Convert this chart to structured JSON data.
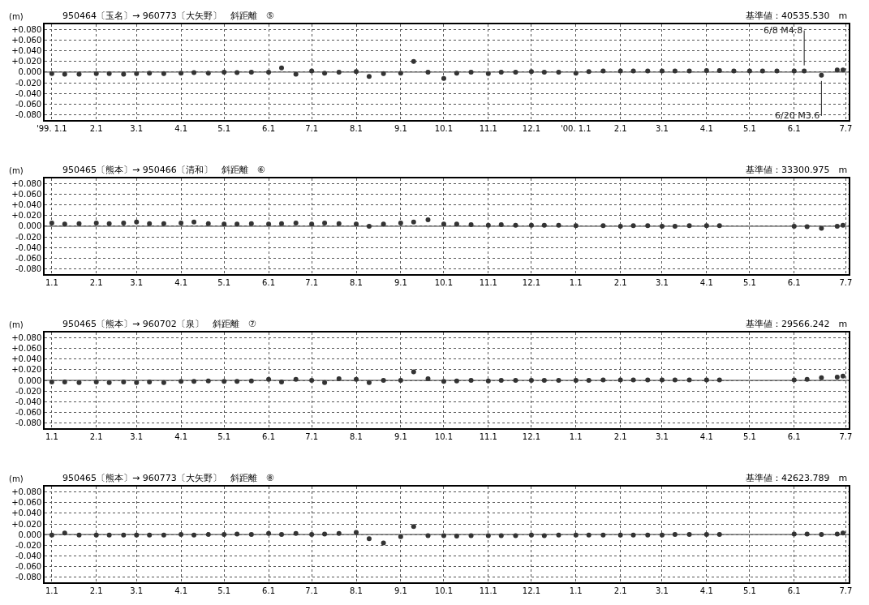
{
  "chart_data": [
    {
      "type": "scatter",
      "title": "950464〔玉名〕→ 960773〔大矢野〕　斜距離　⑤",
      "subtitle": "基準値：40535.530　m",
      "ylabel": "(m)",
      "color": "#333333",
      "marker": "circle",
      "grid": true,
      "x": [
        "1999-01-01",
        "1999-01-10",
        "1999-01-20",
        "1999-02-01",
        "1999-02-10",
        "1999-02-20",
        "1999-03-01",
        "1999-03-10",
        "1999-03-20",
        "1999-04-01",
        "1999-04-10",
        "1999-04-20",
        "1999-05-01",
        "1999-05-10",
        "1999-05-20",
        "1999-06-01",
        "1999-06-10",
        "1999-06-20",
        "1999-07-01",
        "1999-07-10",
        "1999-07-20",
        "1999-08-01",
        "1999-08-10",
        "1999-08-20",
        "1999-09-01",
        "1999-09-10",
        "1999-09-20",
        "1999-10-01",
        "1999-10-10",
        "1999-10-20",
        "1999-11-01",
        "1999-11-10",
        "1999-11-20",
        "1999-12-01",
        "1999-12-10",
        "1999-12-20",
        "2000-01-01",
        "2000-01-10",
        "2000-01-20",
        "2000-02-01",
        "2000-02-10",
        "2000-02-20",
        "2000-03-01",
        "2000-03-10",
        "2000-03-20",
        "2000-04-01",
        "2000-04-10",
        "2000-04-20",
        "2000-05-01",
        "2000-05-10",
        "2000-05-20",
        "2000-06-01",
        "2000-06-08",
        "2000-06-20",
        "2000-07-01",
        "2000-07-05"
      ],
      "values": [
        -0.003,
        -0.004,
        -0.004,
        -0.003,
        -0.003,
        -0.004,
        -0.003,
        -0.002,
        -0.003,
        -0.002,
        -0.001,
        -0.002,
        0.0,
        -0.001,
        0.0,
        0.0,
        0.008,
        -0.004,
        0.002,
        -0.002,
        0.0,
        0.001,
        -0.008,
        -0.003,
        -0.002,
        0.02,
        0.0,
        -0.012,
        -0.002,
        0.0,
        -0.003,
        0.0,
        0.0,
        0.001,
        0.0,
        0.0,
        -0.002,
        0.001,
        0.002,
        0.002,
        0.002,
        0.002,
        0.002,
        0.002,
        0.002,
        0.003,
        0.003,
        0.002,
        0.002,
        0.002,
        0.002,
        0.002,
        0.002,
        -0.006,
        0.004,
        0.004
      ],
      "xlim": [
        "1998-12-27",
        "2000-07-09"
      ],
      "xticks": [
        {
          "value": "1999-01-01",
          "label": "'99. 1.1"
        },
        {
          "value": "1999-02-01",
          "label": "2.1"
        },
        {
          "value": "1999-03-01",
          "label": "3.1"
        },
        {
          "value": "1999-04-01",
          "label": "4.1"
        },
        {
          "value": "1999-05-01",
          "label": "5.1"
        },
        {
          "value": "1999-06-01",
          "label": "6.1"
        },
        {
          "value": "1999-07-01",
          "label": "7.1"
        },
        {
          "value": "1999-08-01",
          "label": "8.1"
        },
        {
          "value": "1999-09-01",
          "label": "9.1"
        },
        {
          "value": "1999-10-01",
          "label": "10.1"
        },
        {
          "value": "1999-11-01",
          "label": "11.1"
        },
        {
          "value": "1999-12-01",
          "label": "12.1"
        },
        {
          "value": "2000-01-01",
          "label": "'00. 1.1"
        },
        {
          "value": "2000-02-01",
          "label": "2.1"
        },
        {
          "value": "2000-03-01",
          "label": "3.1"
        },
        {
          "value": "2000-04-01",
          "label": "4.1"
        },
        {
          "value": "2000-05-01",
          "label": "5.1"
        },
        {
          "value": "2000-06-01",
          "label": "6.1"
        },
        {
          "value": "2000-07-07",
          "label": "7.7"
        }
      ],
      "ylim": [
        -0.09,
        0.09
      ],
      "yticks": [
        {
          "value": 0.08,
          "label": "+0.080"
        },
        {
          "value": 0.06,
          "label": "+0.060"
        },
        {
          "value": 0.04,
          "label": "+0.040"
        },
        {
          "value": 0.02,
          "label": "+0.020"
        },
        {
          "value": 0,
          "label": "0.000"
        },
        {
          "value": -0.02,
          "label": "-0.020"
        },
        {
          "value": -0.04,
          "label": "-0.040"
        },
        {
          "value": -0.06,
          "label": "-0.060"
        },
        {
          "value": -0.08,
          "label": "-0.080"
        }
      ],
      "ref_lines": [
        {
          "axis": "y",
          "value": 0
        }
      ],
      "annotations": [
        {
          "text": "6/8 M4.8",
          "x": "2000-06-08",
          "y": 0.002
        },
        {
          "text": "6/20 M3.6",
          "x": "2000-06-20",
          "y": -0.006
        }
      ]
    },
    {
      "type": "scatter",
      "title": "950465〔熊本〕→ 950466〔清和〕　斜距離　⑥",
      "subtitle": "基準値：33300.975　m",
      "ylabel": "(m)",
      "color": "#333333",
      "marker": "circle",
      "grid": true,
      "x": [
        "1999-01-01",
        "1999-01-10",
        "1999-01-20",
        "1999-02-01",
        "1999-02-10",
        "1999-02-20",
        "1999-03-01",
        "1999-03-10",
        "1999-03-20",
        "1999-04-01",
        "1999-04-10",
        "1999-04-20",
        "1999-05-01",
        "1999-05-10",
        "1999-05-20",
        "1999-06-01",
        "1999-06-10",
        "1999-06-20",
        "1999-07-01",
        "1999-07-10",
        "1999-07-20",
        "1999-08-01",
        "1999-08-10",
        "1999-08-20",
        "1999-09-01",
        "1999-09-10",
        "1999-09-20",
        "1999-10-01",
        "1999-10-10",
        "1999-10-20",
        "1999-11-01",
        "1999-11-10",
        "1999-11-20",
        "1999-12-01",
        "1999-12-10",
        "1999-12-20",
        "2000-01-01",
        "2000-01-10",
        "2000-01-20",
        "2000-02-01",
        "2000-02-10",
        "2000-02-20",
        "2000-03-01",
        "2000-03-10",
        "2000-03-20",
        "2000-04-01",
        "2000-04-10",
        "2000-04-20",
        "2000-05-01",
        "2000-05-10",
        "2000-05-20",
        "2000-06-01",
        "2000-06-10",
        "2000-06-20",
        "2000-07-01",
        "2000-07-05"
      ],
      "values": [
        0.006,
        0.004,
        0.005,
        0.006,
        0.005,
        0.006,
        0.008,
        0.005,
        0.005,
        0.006,
        0.008,
        0.005,
        0.004,
        0.004,
        0.005,
        0.004,
        0.005,
        0.006,
        0.004,
        0.006,
        0.005,
        0.004,
        0.0,
        0.004,
        0.006,
        0.008,
        0.012,
        0.004,
        0.004,
        0.003,
        0.002,
        0.003,
        0.002,
        0.002,
        0.002,
        0.002,
        0.001,
        null,
        0.001,
        0.0,
        0.001,
        0.001,
        0.0,
        0.0,
        0.001,
        0.001,
        0.001,
        null,
        null,
        null,
        null,
        0.0,
        -0.001,
        -0.004,
        0.0,
        0.002
      ],
      "xlim": [
        "1998-12-27",
        "2000-07-09"
      ],
      "xticks": [
        {
          "value": "1999-01-01",
          "label": "1.1"
        },
        {
          "value": "1999-02-01",
          "label": "2.1"
        },
        {
          "value": "1999-03-01",
          "label": "3.1"
        },
        {
          "value": "1999-04-01",
          "label": "4.1"
        },
        {
          "value": "1999-05-01",
          "label": "5.1"
        },
        {
          "value": "1999-06-01",
          "label": "6.1"
        },
        {
          "value": "1999-07-01",
          "label": "7.1"
        },
        {
          "value": "1999-08-01",
          "label": "8.1"
        },
        {
          "value": "1999-09-01",
          "label": "9.1"
        },
        {
          "value": "1999-10-01",
          "label": "10.1"
        },
        {
          "value": "1999-11-01",
          "label": "11.1"
        },
        {
          "value": "1999-12-01",
          "label": "12.1"
        },
        {
          "value": "2000-01-01",
          "label": "1.1"
        },
        {
          "value": "2000-02-01",
          "label": "2.1"
        },
        {
          "value": "2000-03-01",
          "label": "3.1"
        },
        {
          "value": "2000-04-01",
          "label": "4.1"
        },
        {
          "value": "2000-05-01",
          "label": "5.1"
        },
        {
          "value": "2000-06-01",
          "label": "6.1"
        },
        {
          "value": "2000-07-07",
          "label": "7.7"
        }
      ],
      "ylim": [
        -0.09,
        0.09
      ],
      "yticks": [
        {
          "value": 0.08,
          "label": "+0.080"
        },
        {
          "value": 0.06,
          "label": "+0.060"
        },
        {
          "value": 0.04,
          "label": "+0.040"
        },
        {
          "value": 0.02,
          "label": "+0.020"
        },
        {
          "value": 0,
          "label": "0.000"
        },
        {
          "value": -0.02,
          "label": "-0.020"
        },
        {
          "value": -0.04,
          "label": "-0.040"
        },
        {
          "value": -0.06,
          "label": "-0.060"
        },
        {
          "value": -0.08,
          "label": "-0.080"
        }
      ],
      "ref_lines": [
        {
          "axis": "y",
          "value": 0
        }
      ]
    },
    {
      "type": "scatter",
      "title": "950465〔熊本〕→ 960702〔泉〕　斜距離　⑦",
      "subtitle": "基準値：29566.242　m",
      "ylabel": "(m)",
      "color": "#333333",
      "marker": "circle",
      "grid": true,
      "x": [
        "1999-01-01",
        "1999-01-10",
        "1999-01-20",
        "1999-02-01",
        "1999-02-10",
        "1999-02-20",
        "1999-03-01",
        "1999-03-10",
        "1999-03-20",
        "1999-04-01",
        "1999-04-10",
        "1999-04-20",
        "1999-05-01",
        "1999-05-10",
        "1999-05-20",
        "1999-06-01",
        "1999-06-10",
        "1999-06-20",
        "1999-07-01",
        "1999-07-10",
        "1999-07-20",
        "1999-08-01",
        "1999-08-10",
        "1999-08-20",
        "1999-09-01",
        "1999-09-10",
        "1999-09-20",
        "1999-10-01",
        "1999-10-10",
        "1999-10-20",
        "1999-11-01",
        "1999-11-10",
        "1999-11-20",
        "1999-12-01",
        "1999-12-10",
        "1999-12-20",
        "2000-01-01",
        "2000-01-10",
        "2000-01-20",
        "2000-02-01",
        "2000-02-10",
        "2000-02-20",
        "2000-03-01",
        "2000-03-10",
        "2000-03-20",
        "2000-04-01",
        "2000-04-10",
        "2000-04-20",
        "2000-05-01",
        "2000-05-10",
        "2000-05-20",
        "2000-06-01",
        "2000-06-10",
        "2000-06-20",
        "2000-07-01",
        "2000-07-05"
      ],
      "values": [
        -0.003,
        -0.003,
        -0.004,
        -0.003,
        -0.004,
        -0.003,
        -0.004,
        -0.003,
        -0.004,
        -0.002,
        -0.002,
        -0.001,
        -0.002,
        -0.002,
        -0.001,
        0.002,
        -0.003,
        0.002,
        0.0,
        -0.004,
        0.003,
        0.002,
        -0.004,
        0.0,
        0.0,
        0.016,
        0.003,
        -0.002,
        -0.001,
        0.0,
        -0.001,
        0.0,
        0.0,
        0.0,
        0.0,
        0.0,
        0.0,
        0.0,
        0.001,
        0.001,
        0.001,
        0.001,
        0.001,
        0.001,
        0.001,
        0.001,
        0.001,
        null,
        null,
        null,
        null,
        0.001,
        0.002,
        0.005,
        0.006,
        0.008
      ],
      "xlim": [
        "1998-12-27",
        "2000-07-09"
      ],
      "xticks": [
        {
          "value": "1999-01-01",
          "label": "1.1"
        },
        {
          "value": "1999-02-01",
          "label": "2.1"
        },
        {
          "value": "1999-03-01",
          "label": "3.1"
        },
        {
          "value": "1999-04-01",
          "label": "4.1"
        },
        {
          "value": "1999-05-01",
          "label": "5.1"
        },
        {
          "value": "1999-06-01",
          "label": "6.1"
        },
        {
          "value": "1999-07-01",
          "label": "7.1"
        },
        {
          "value": "1999-08-01",
          "label": "8.1"
        },
        {
          "value": "1999-09-01",
          "label": "9.1"
        },
        {
          "value": "1999-10-01",
          "label": "10.1"
        },
        {
          "value": "1999-11-01",
          "label": "11.1"
        },
        {
          "value": "1999-12-01",
          "label": "12.1"
        },
        {
          "value": "2000-01-01",
          "label": "1.1"
        },
        {
          "value": "2000-02-01",
          "label": "2.1"
        },
        {
          "value": "2000-03-01",
          "label": "3.1"
        },
        {
          "value": "2000-04-01",
          "label": "4.1"
        },
        {
          "value": "2000-05-01",
          "label": "5.1"
        },
        {
          "value": "2000-06-01",
          "label": "6.1"
        },
        {
          "value": "2000-07-07",
          "label": "7.7"
        }
      ],
      "ylim": [
        -0.09,
        0.09
      ],
      "yticks": [
        {
          "value": 0.08,
          "label": "+0.080"
        },
        {
          "value": 0.06,
          "label": "+0.060"
        },
        {
          "value": 0.04,
          "label": "+0.040"
        },
        {
          "value": 0.02,
          "label": "+0.020"
        },
        {
          "value": 0,
          "label": "0.000"
        },
        {
          "value": -0.02,
          "label": "-0.020"
        },
        {
          "value": -0.04,
          "label": "-0.040"
        },
        {
          "value": -0.06,
          "label": "-0.060"
        },
        {
          "value": -0.08,
          "label": "-0.080"
        }
      ],
      "ref_lines": [
        {
          "axis": "y",
          "value": 0
        }
      ]
    },
    {
      "type": "scatter",
      "title": "950465〔熊本〕→ 960773〔大矢野〕　斜距離　⑧",
      "subtitle": "基準値：42623.789　m",
      "ylabel": "(m)",
      "color": "#333333",
      "marker": "circle",
      "grid": true,
      "x": [
        "1999-01-01",
        "1999-01-10",
        "1999-01-20",
        "1999-02-01",
        "1999-02-10",
        "1999-02-20",
        "1999-03-01",
        "1999-03-10",
        "1999-03-20",
        "1999-04-01",
        "1999-04-10",
        "1999-04-20",
        "1999-05-01",
        "1999-05-10",
        "1999-05-20",
        "1999-06-01",
        "1999-06-10",
        "1999-06-20",
        "1999-07-01",
        "1999-07-10",
        "1999-07-20",
        "1999-08-01",
        "1999-08-10",
        "1999-08-20",
        "1999-09-01",
        "1999-09-10",
        "1999-09-20",
        "1999-10-01",
        "1999-10-10",
        "1999-10-20",
        "1999-11-01",
        "1999-11-10",
        "1999-11-20",
        "1999-12-01",
        "1999-12-10",
        "1999-12-20",
        "2000-01-01",
        "2000-01-10",
        "2000-01-20",
        "2000-02-01",
        "2000-02-10",
        "2000-02-20",
        "2000-03-01",
        "2000-03-10",
        "2000-03-20",
        "2000-04-01",
        "2000-04-10",
        "2000-04-20",
        "2000-05-01",
        "2000-05-10",
        "2000-05-20",
        "2000-06-01",
        "2000-06-10",
        "2000-06-20",
        "2000-07-01",
        "2000-07-05"
      ],
      "values": [
        -0.001,
        0.003,
        -0.001,
        -0.001,
        -0.001,
        -0.001,
        -0.001,
        -0.001,
        -0.001,
        0.0,
        -0.001,
        0.0,
        0.0,
        0.001,
        0.0,
        0.002,
        0.0,
        0.002,
        0.0,
        0.001,
        0.002,
        0.004,
        -0.008,
        -0.016,
        -0.004,
        0.015,
        -0.002,
        -0.002,
        -0.003,
        -0.002,
        -0.002,
        -0.002,
        -0.002,
        -0.001,
        -0.002,
        -0.001,
        -0.001,
        -0.001,
        -0.001,
        -0.001,
        -0.001,
        -0.001,
        -0.001,
        0.0,
        0.0,
        0.0,
        0.0,
        null,
        null,
        null,
        null,
        0.001,
        0.001,
        0.0,
        0.001,
        0.003
      ],
      "xlim": [
        "1998-12-27",
        "2000-07-09"
      ],
      "xticks": [
        {
          "value": "1999-01-01",
          "label": "1.1"
        },
        {
          "value": "1999-02-01",
          "label": "2.1"
        },
        {
          "value": "1999-03-01",
          "label": "3.1"
        },
        {
          "value": "1999-04-01",
          "label": "4.1"
        },
        {
          "value": "1999-05-01",
          "label": "5.1"
        },
        {
          "value": "1999-06-01",
          "label": "6.1"
        },
        {
          "value": "1999-07-01",
          "label": "7.1"
        },
        {
          "value": "1999-08-01",
          "label": "8.1"
        },
        {
          "value": "1999-09-01",
          "label": "9.1"
        },
        {
          "value": "1999-10-01",
          "label": "10.1"
        },
        {
          "value": "1999-11-01",
          "label": "11.1"
        },
        {
          "value": "1999-12-01",
          "label": "12.1"
        },
        {
          "value": "2000-01-01",
          "label": "1.1"
        },
        {
          "value": "2000-02-01",
          "label": "2.1"
        },
        {
          "value": "2000-03-01",
          "label": "3.1"
        },
        {
          "value": "2000-04-01",
          "label": "4.1"
        },
        {
          "value": "2000-05-01",
          "label": "5.1"
        },
        {
          "value": "2000-06-01",
          "label": "6.1"
        },
        {
          "value": "2000-07-07",
          "label": "7.7"
        }
      ],
      "ylim": [
        -0.09,
        0.09
      ],
      "yticks": [
        {
          "value": 0.08,
          "label": "+0.080"
        },
        {
          "value": 0.06,
          "label": "+0.060"
        },
        {
          "value": 0.04,
          "label": "+0.040"
        },
        {
          "value": 0.02,
          "label": "+0.020"
        },
        {
          "value": 0,
          "label": "0.000"
        },
        {
          "value": -0.02,
          "label": "-0.020"
        },
        {
          "value": -0.04,
          "label": "-0.040"
        },
        {
          "value": -0.06,
          "label": "-0.060"
        },
        {
          "value": -0.08,
          "label": "-0.080"
        }
      ],
      "ref_lines": [
        {
          "axis": "y",
          "value": 0
        }
      ]
    }
  ]
}
